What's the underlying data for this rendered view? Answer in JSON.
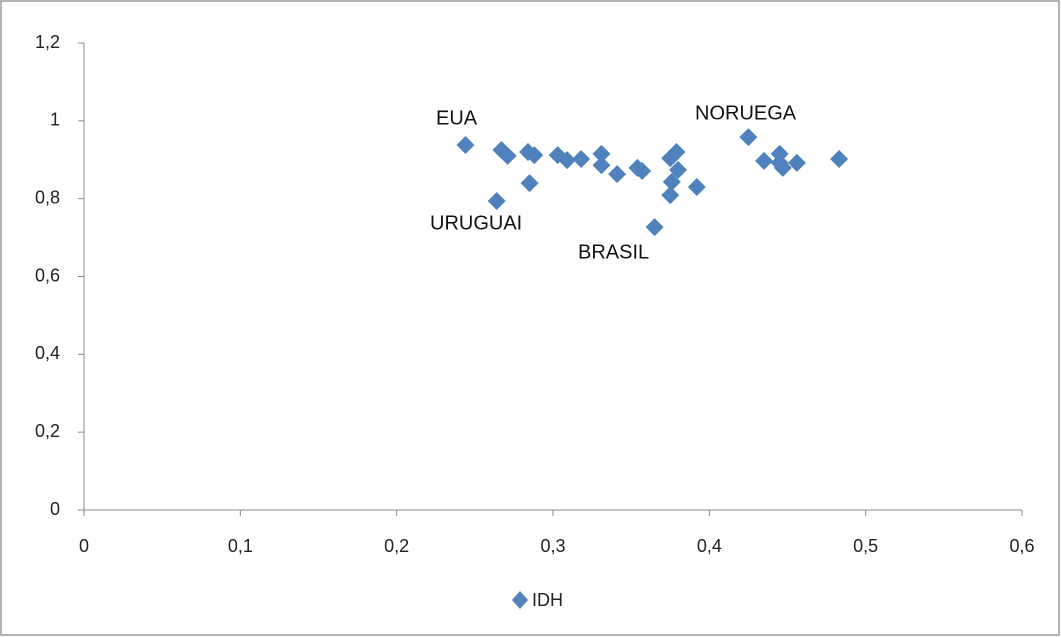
{
  "chart_data": {
    "type": "scatter",
    "series": [
      {
        "name": "IDH",
        "color": "#4f81bd",
        "x": [
          0.244,
          0.264,
          0.267,
          0.271,
          0.284,
          0.288,
          0.285,
          0.303,
          0.309,
          0.318,
          0.331,
          0.331,
          0.341,
          0.354,
          0.357,
          0.365,
          0.375,
          0.376,
          0.375,
          0.379,
          0.38,
          0.392,
          0.425,
          0.435,
          0.445,
          0.445,
          0.447,
          0.456,
          0.483
        ],
        "values": [
          0.938,
          0.794,
          0.925,
          0.91,
          0.92,
          0.912,
          0.84,
          0.912,
          0.899,
          0.902,
          0.915,
          0.886,
          0.863,
          0.879,
          0.871,
          0.727,
          0.809,
          0.843,
          0.904,
          0.92,
          0.874,
          0.83,
          0.958,
          0.897,
          0.915,
          0.892,
          0.879,
          0.892,
          0.902
        ]
      }
    ],
    "annotations": [
      "EUA",
      "URUGUAI",
      "BRASIL",
      "NORUEGA"
    ],
    "xlim": [
      0,
      0.6
    ],
    "xticks": [
      0,
      {
        "value": 0.1,
        "label": "0,1"
      },
      {
        "value": 0.2,
        "label": "0,2"
      },
      {
        "value": 0.3,
        "label": "0,3"
      },
      {
        "value": 0.4,
        "label": "0,4"
      },
      {
        "value": 0.5,
        "label": "0,5"
      },
      {
        "value": 0.6,
        "label": "0,6"
      }
    ],
    "ylim": [
      0,
      1.2
    ],
    "yticks": [
      0,
      {
        "value": 0.2,
        "label": "0,2"
      },
      {
        "value": 0.4,
        "label": "0,4"
      },
      {
        "value": 0.6,
        "label": "0,6"
      },
      {
        "value": 0.8,
        "label": "0,8"
      },
      1,
      {
        "value": 1.2,
        "label": "1,2"
      }
    ],
    "grid": false
  }
}
